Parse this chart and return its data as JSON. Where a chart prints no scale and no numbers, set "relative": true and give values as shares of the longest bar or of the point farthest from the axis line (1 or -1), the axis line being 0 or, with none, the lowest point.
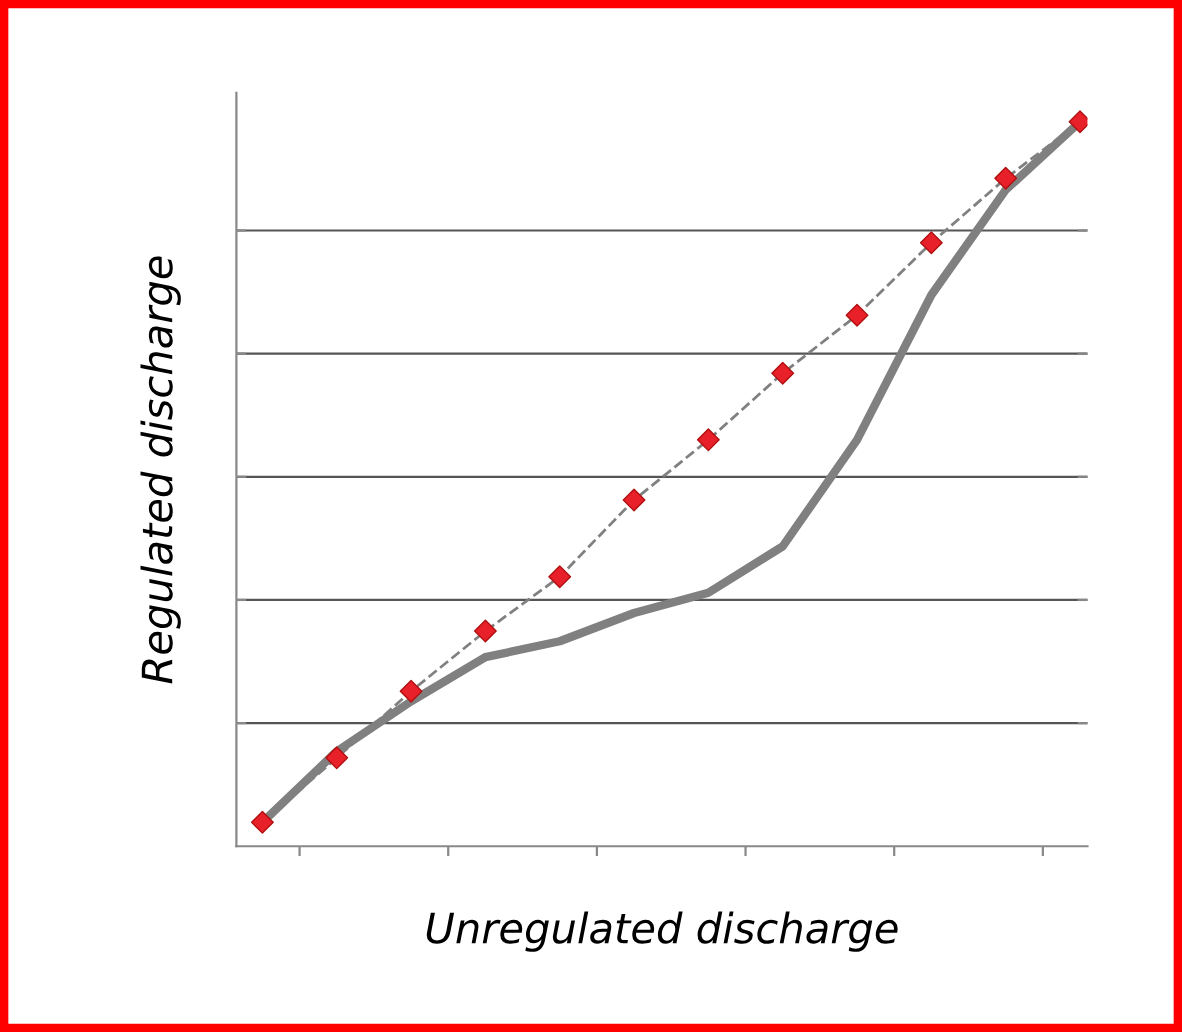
{
  "chart_data": {
    "type": "line",
    "relative": true,
    "xlabel": "Unregulated discharge",
    "ylabel": "Regulated discharge",
    "categories": [
      null,
      null,
      null,
      null,
      null,
      null,
      null,
      null,
      null,
      null,
      null,
      null
    ],
    "series": [
      {
        "color": "#808080",
        "line_style": "solid",
        "marker": "none",
        "values": [
          0.033,
          0.131,
          0.2,
          0.261,
          0.283,
          0.322,
          0.35,
          0.414,
          0.561,
          0.761,
          0.906,
          1
        ]
      },
      {
        "color": "#808080",
        "colors": [
          "#e8202a",
          "#e8202a",
          "#e8202a",
          "#e8202a",
          "#e8202a",
          "#e8202a",
          "#e8202a",
          "#e8202a",
          "#e8202a",
          "#e8202a",
          "#e8202a",
          "#e8202a"
        ],
        "line_style": "dashed",
        "marker": "diamond",
        "values": [
          0.033,
          0.122,
          0.214,
          0.297,
          0.372,
          0.478,
          0.561,
          0.653,
          0.733,
          0.833,
          0.922,
          1
        ]
      }
    ],
    "grid": "y",
    "legend": false,
    "tick_labels": false
  }
}
